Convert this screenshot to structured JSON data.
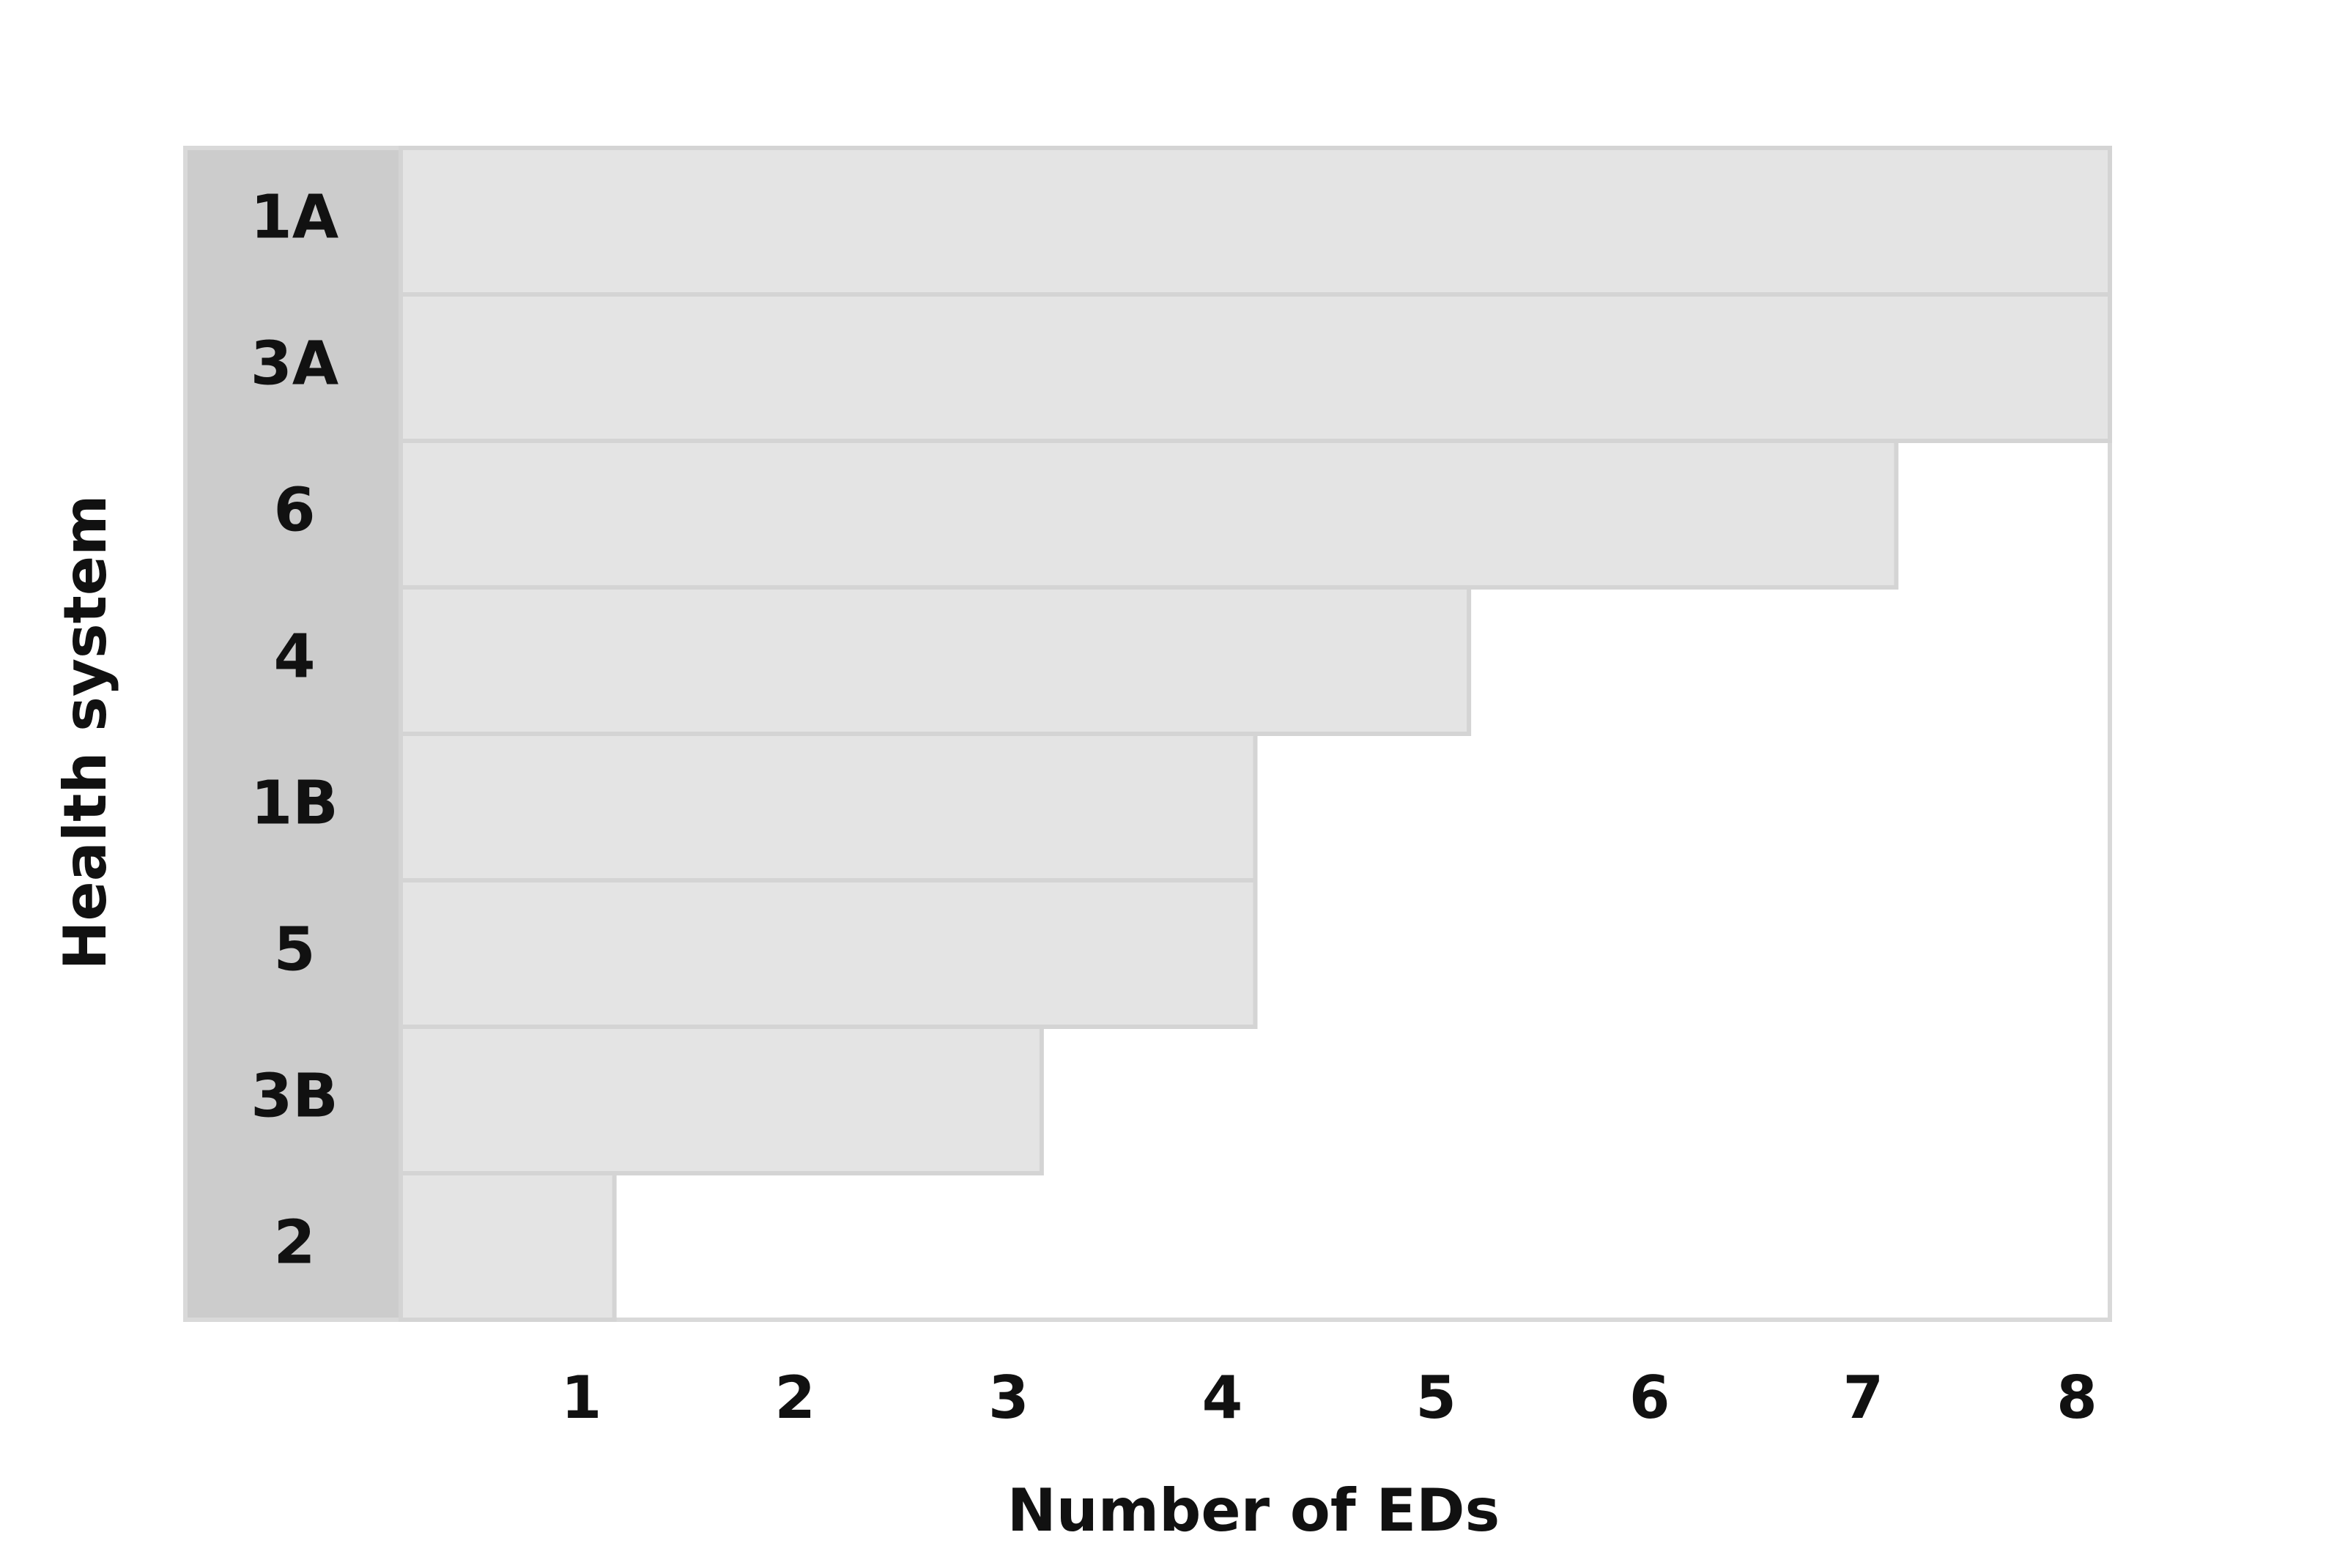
{
  "chart_data": {
    "type": "barh",
    "x_label": "Number of EDs",
    "y_label": "Health system",
    "categories": [
      "1A",
      "3A",
      "6",
      "4",
      "1B",
      "5",
      "3B",
      "2"
    ],
    "values": [
      8,
      8,
      7,
      5,
      4,
      4,
      3,
      1
    ],
    "color": "#e4e4e4",
    "xlim": [
      0,
      8
    ],
    "xticks": [
      1,
      2,
      3,
      4,
      5,
      6,
      7,
      8
    ],
    "grid": false
  }
}
